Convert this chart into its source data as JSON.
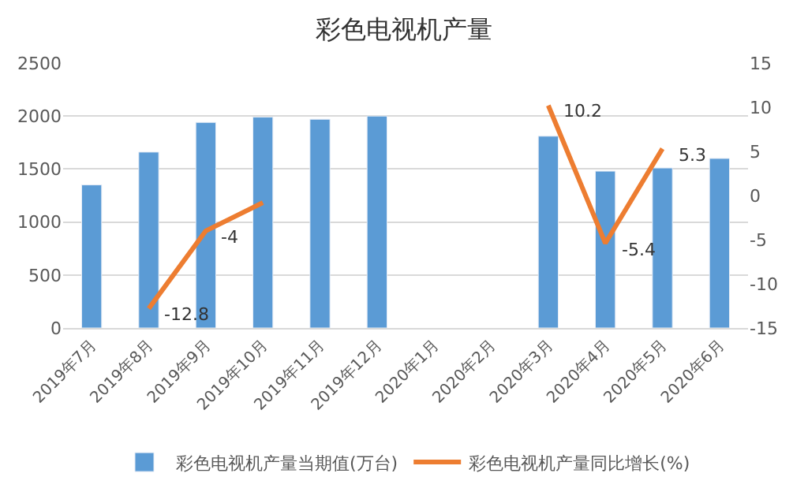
{
  "chart_data": {
    "type": "bar",
    "title": "彩色电视机产量",
    "categories": [
      "2019年7月",
      "2019年8月",
      "2019年9月",
      "2019年10月",
      "2019年11月",
      "2019年12月",
      "2020年1月",
      "2020年2月",
      "2020年3月",
      "2020年4月",
      "2020年5月",
      "2020年6月"
    ],
    "series": [
      {
        "name": "彩色电视机产量当期值(万台)",
        "color": "#5b9bd5",
        "values": [
          1350,
          1660,
          1940,
          1990,
          1970,
          2000,
          null,
          null,
          1810,
          1480,
          1510,
          1600
        ]
      },
      {
        "name": "彩色电视机产量同比增长(%)",
        "type": "line",
        "axis": "y2",
        "color": "#ed7d31",
        "values": [
          null,
          -12.8,
          -4,
          -0.8,
          null,
          null,
          null,
          null,
          10.2,
          -5.4,
          5.3,
          null
        ],
        "value_labels": [
          null,
          "-12.8",
          "-4",
          null,
          null,
          null,
          null,
          null,
          "10.2",
          "-5.4",
          "5.3",
          null
        ]
      }
    ],
    "ylim": [
      0,
      2500
    ],
    "yticks": [
      0,
      500,
      1000,
      1500,
      2000,
      2500
    ],
    "y2lim": [
      -15,
      15
    ],
    "y2ticks": [
      -15,
      -10,
      -5,
      0,
      5,
      10,
      15
    ],
    "grid": "y",
    "legend": "bottom"
  }
}
